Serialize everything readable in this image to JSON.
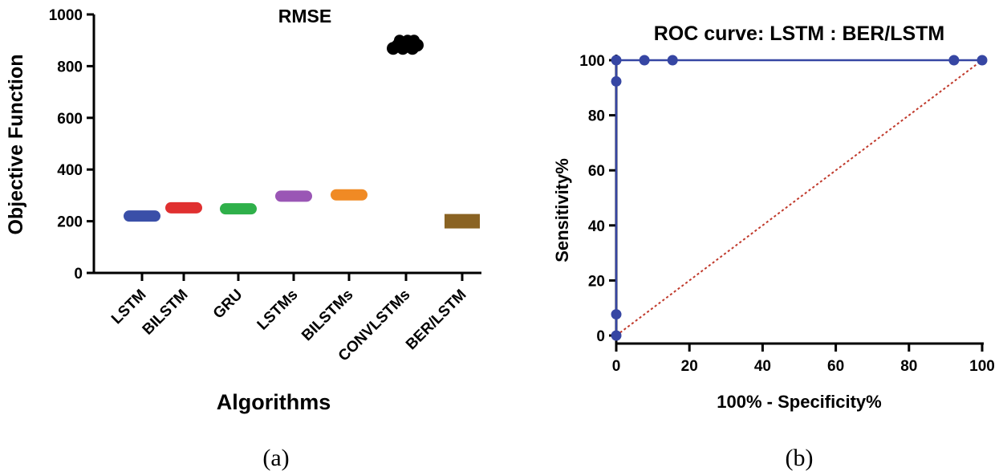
{
  "chart_data": [
    {
      "type": "scatter",
      "title": "RMSE",
      "xlabel": "Algorithms",
      "ylabel": "Objective Function",
      "ylim": [
        0,
        1000
      ],
      "yticks": [
        0,
        200,
        400,
        600,
        800,
        1000
      ],
      "categories": [
        "LSTM",
        "BILSTM",
        "GRU",
        "LSTMs",
        "BILSTMs",
        "CONVLSTMs",
        "BER/LSTM"
      ],
      "values": [
        220,
        252,
        248,
        297,
        302,
        875,
        200
      ],
      "series_colors": [
        "#3a4fa8",
        "#e03030",
        "#2fb04a",
        "#9a56b5",
        "#f08a24",
        "#000000",
        "#8a6323"
      ],
      "caption": "(a)"
    },
    {
      "type": "line",
      "title": "ROC curve: LSTM : BER/LSTM",
      "xlabel": "100% - Specificity%",
      "ylabel": "Sensitivity%",
      "xlim": [
        0,
        100
      ],
      "ylim": [
        0,
        100
      ],
      "xticks": [
        0,
        20,
        40,
        60,
        80,
        100
      ],
      "yticks": [
        0,
        20,
        40,
        60,
        80,
        100
      ],
      "series": [
        {
          "x": [
            0,
            0,
            0,
            0,
            7.7,
            15.4,
            92.3,
            100
          ],
          "y": [
            0,
            7.7,
            92.3,
            100,
            100,
            100,
            100,
            100
          ],
          "color": "#3646a3"
        }
      ],
      "reference_line": {
        "x": [
          0,
          100
        ],
        "y": [
          0,
          100
        ],
        "color": "#c0392b",
        "style": "dotted"
      },
      "caption": "(b)"
    }
  ]
}
